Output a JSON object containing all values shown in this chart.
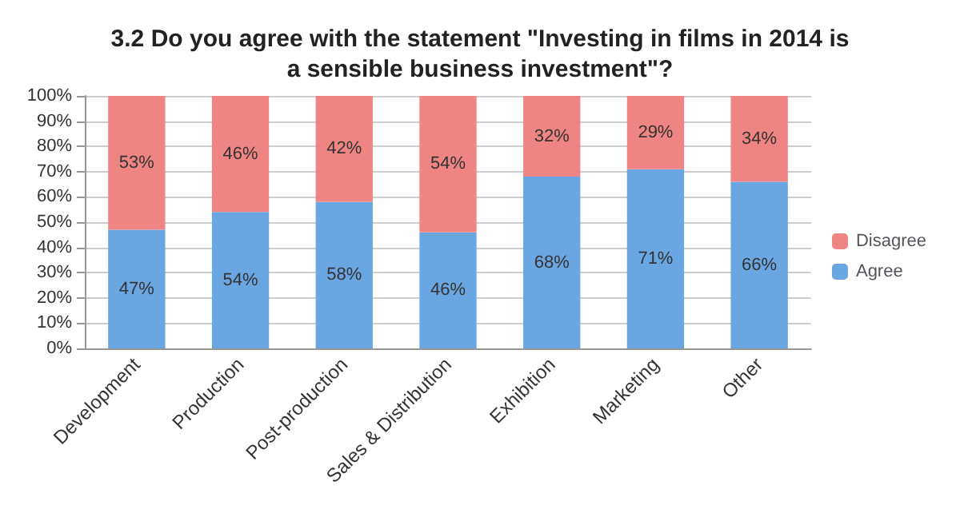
{
  "chart_data": {
    "type": "bar",
    "title": "3.2 Do you agree with the statement \"Investing in films in 2014 is\na sensible business investment\"?",
    "categories": [
      "Development",
      "Production",
      "Post-production",
      "Sales & Distribution",
      "Exhibition",
      "Marketing",
      "Other"
    ],
    "stacked": true,
    "series": [
      {
        "name": "Agree",
        "color": "#6aa6e2",
        "values": [
          47,
          54,
          58,
          46,
          68,
          71,
          66
        ],
        "value_labels": [
          "47%",
          "54%",
          "58%",
          "46%",
          "68%",
          "71%",
          "66%"
        ]
      },
      {
        "name": "Disagree",
        "color": "#ef8583",
        "values": [
          53,
          46,
          42,
          54,
          32,
          29,
          34
        ],
        "value_labels": [
          "53%",
          "46%",
          "42%",
          "54%",
          "32%",
          "29%",
          "34%"
        ]
      }
    ],
    "ylim": [
      0,
      100
    ],
    "yticks": [
      {
        "value": 0,
        "label": "0%"
      },
      {
        "value": 10,
        "label": "10%"
      },
      {
        "value": 20,
        "label": "20%"
      },
      {
        "value": 30,
        "label": "30%"
      },
      {
        "value": 40,
        "label": "40%"
      },
      {
        "value": 50,
        "label": "50%"
      },
      {
        "value": 60,
        "label": "60%"
      },
      {
        "value": 70,
        "label": "70%"
      },
      {
        "value": 80,
        "label": "80%"
      },
      {
        "value": 90,
        "label": "90%"
      },
      {
        "value": 100,
        "label": "100%"
      }
    ],
    "grid": "y",
    "legend": "right"
  }
}
